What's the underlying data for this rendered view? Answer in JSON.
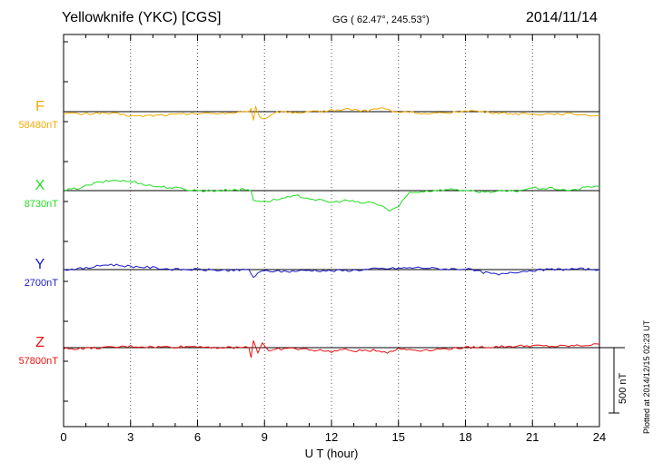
{
  "header": {
    "station": "Yellowknife (YKC)  [CGS]",
    "coords": "GG ( 62.47°, 245.53°)",
    "date": "2014/11/14"
  },
  "footer": {
    "plotted": "Plotted at 2014/12/15 02:23 UT"
  },
  "chart_data": {
    "type": "line",
    "title": "Yellowknife (YKC)  [CGS]",
    "xlabel": "U T (hour)",
    "ylabel": "",
    "xlim": [
      0,
      24
    ],
    "xticks": [
      "0",
      "3",
      "6",
      "9",
      "12",
      "15",
      "18",
      "21",
      "24"
    ],
    "grid": "vertical dotted at 3-hour intervals",
    "scale_bar": {
      "label": "500 nT",
      "value_nT": 500
    },
    "series": [
      {
        "name": "F",
        "baseline": "58480nT",
        "baseline_nT": 58480,
        "color": "#f5a800",
        "x": [
          0,
          0.8,
          1.5,
          2.2,
          3.3,
          4.5,
          6,
          7.5,
          8.2,
          8.4,
          8.5,
          8.6,
          8.8,
          9,
          9.3,
          9.8,
          10.5,
          11.3,
          12,
          12.8,
          13.5,
          14.3,
          14.8,
          15.5,
          16.3,
          17.2,
          18,
          19,
          20,
          21,
          22,
          23,
          24
        ],
        "values": [
          -10,
          -20,
          -10,
          -15,
          -35,
          -25,
          -15,
          -10,
          -5,
          15,
          -70,
          40,
          -45,
          -55,
          -20,
          5,
          -15,
          0,
          10,
          20,
          5,
          30,
          -5,
          0,
          -20,
          -10,
          10,
          -5,
          -15,
          -20,
          -15,
          -20,
          -30
        ]
      },
      {
        "name": "X",
        "baseline": "8730nT",
        "baseline_nT": 8730,
        "color": "#22dd22",
        "x": [
          0,
          0.7,
          1.5,
          2.3,
          3.2,
          4,
          5,
          6,
          7,
          8,
          8.4,
          8.5,
          9,
          9.8,
          10.5,
          11.3,
          12,
          12.7,
          13.3,
          13.8,
          14.3,
          14.6,
          14.9,
          15.5,
          16.5,
          17.5,
          18.5,
          19.5,
          20.2,
          21,
          22,
          22.8,
          23.5,
          24
        ],
        "values": [
          0,
          20,
          60,
          80,
          65,
          35,
          20,
          0,
          0,
          10,
          0,
          -70,
          -85,
          -60,
          -40,
          -70,
          -90,
          -75,
          -95,
          -90,
          -120,
          -155,
          -135,
          -15,
          0,
          10,
          -10,
          -5,
          -5,
          20,
          15,
          0,
          30,
          30
        ]
      },
      {
        "name": "Y",
        "baseline": "2700nT",
        "baseline_nT": 2700,
        "color": "#1a1acc",
        "x": [
          0,
          1,
          2,
          3,
          4,
          5,
          6,
          7,
          8,
          8.3,
          8.5,
          8.7,
          9,
          10,
          11,
          12,
          13,
          14,
          15,
          16,
          17,
          18,
          18.8,
          19.5,
          20,
          20.5,
          21,
          22,
          23,
          24
        ],
        "values": [
          0,
          10,
          40,
          25,
          15,
          0,
          0,
          -5,
          -5,
          0,
          -60,
          -30,
          -10,
          -15,
          -5,
          -10,
          -5,
          5,
          10,
          15,
          5,
          5,
          -20,
          -40,
          -20,
          -15,
          -5,
          0,
          5,
          0
        ]
      },
      {
        "name": "Z",
        "baseline": "57800nT",
        "baseline_nT": 57800,
        "color": "#ee1111",
        "x": [
          0,
          1,
          2,
          3,
          4,
          5,
          6,
          7,
          8,
          8.3,
          8.4,
          8.5,
          8.7,
          8.9,
          9.2,
          9.5,
          10,
          11,
          12,
          12.5,
          13,
          14,
          14.5,
          15,
          16,
          17,
          18,
          19,
          20,
          21,
          22,
          23,
          24
        ],
        "values": [
          -10,
          -5,
          0,
          10,
          5,
          5,
          10,
          0,
          0,
          10,
          -80,
          60,
          -40,
          40,
          -30,
          -15,
          -5,
          -15,
          -30,
          -15,
          -25,
          -20,
          -35,
          -10,
          -20,
          -10,
          0,
          5,
          10,
          15,
          10,
          15,
          25
        ]
      }
    ]
  }
}
